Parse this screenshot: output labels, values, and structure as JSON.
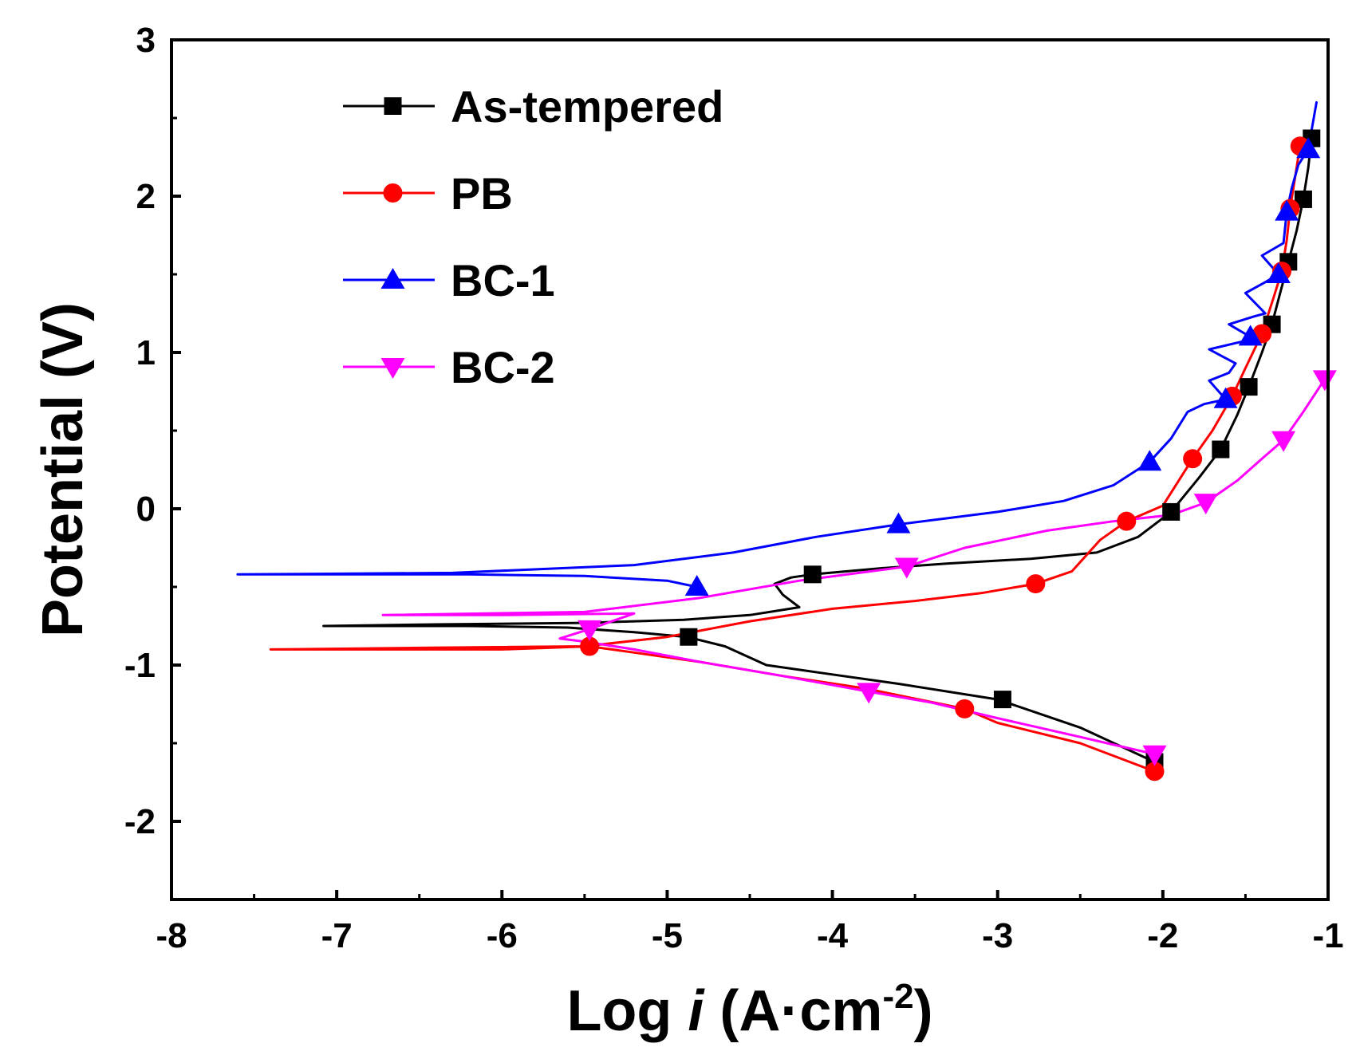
{
  "chart_data": {
    "type": "line",
    "title": "",
    "xlabel_prefix": "Log ",
    "xlabel_var": "i",
    "xlabel_unit": " (A·cm",
    "xlabel_exp": "-2",
    "xlabel_close": ")",
    "ylabel": "Potential (V)",
    "xlim": [
      -8,
      -1
    ],
    "ylim": [
      -2.5,
      3
    ],
    "xticks": [
      -8,
      -7,
      -6,
      -5,
      -4,
      -3,
      -2,
      -1
    ],
    "yticks": [
      -2,
      -1,
      0,
      1,
      2,
      3
    ],
    "xtick_labels": [
      "-8",
      "-7",
      "-6",
      "-5",
      "-4",
      "-3",
      "-2",
      "-1"
    ],
    "ytick_labels": [
      "-2",
      "-1",
      "0",
      "1",
      "2",
      "3"
    ],
    "legend_position": "top-left",
    "grid": false,
    "series": [
      {
        "name": "As-tempered",
        "color": "#000000",
        "marker": "square",
        "curve": [
          [
            -2.05,
            -1.62
          ],
          [
            -2.5,
            -1.4
          ],
          [
            -3.0,
            -1.22
          ],
          [
            -3.6,
            -1.12
          ],
          [
            -4.0,
            -1.06
          ],
          [
            -4.4,
            -1.0
          ],
          [
            -4.65,
            -0.88
          ],
          [
            -4.88,
            -0.82
          ],
          [
            -5.2,
            -0.79
          ],
          [
            -5.6,
            -0.76
          ],
          [
            -6.2,
            -0.75
          ],
          [
            -7.08,
            -0.75
          ],
          [
            -6.4,
            -0.74
          ],
          [
            -5.5,
            -0.73
          ],
          [
            -4.9,
            -0.71
          ],
          [
            -4.5,
            -0.68
          ],
          [
            -4.2,
            -0.63
          ],
          [
            -4.3,
            -0.55
          ],
          [
            -4.35,
            -0.48
          ],
          [
            -4.25,
            -0.44
          ],
          [
            -4.12,
            -0.42
          ],
          [
            -3.7,
            -0.38
          ],
          [
            -3.3,
            -0.35
          ],
          [
            -2.8,
            -0.32
          ],
          [
            -2.4,
            -0.28
          ],
          [
            -2.15,
            -0.18
          ],
          [
            -1.95,
            -0.02
          ],
          [
            -1.78,
            0.2
          ],
          [
            -1.65,
            0.38
          ],
          [
            -1.55,
            0.6
          ],
          [
            -1.48,
            0.78
          ],
          [
            -1.4,
            1.0
          ],
          [
            -1.34,
            1.18
          ],
          [
            -1.29,
            1.38
          ],
          [
            -1.24,
            1.58
          ],
          [
            -1.19,
            1.78
          ],
          [
            -1.15,
            1.98
          ],
          [
            -1.12,
            2.18
          ],
          [
            -1.1,
            2.37
          ]
        ],
        "points": [
          [
            -2.05,
            -1.62
          ],
          [
            -2.97,
            -1.22
          ],
          [
            -4.87,
            -0.82
          ],
          [
            -4.12,
            -0.42
          ],
          [
            -1.95,
            -0.02
          ],
          [
            -1.65,
            0.38
          ],
          [
            -1.48,
            0.78
          ],
          [
            -1.34,
            1.18
          ],
          [
            -1.24,
            1.58
          ],
          [
            -1.15,
            1.98
          ],
          [
            -1.1,
            2.37
          ]
        ]
      },
      {
        "name": "PB",
        "color": "#ff0000",
        "marker": "circle",
        "curve": [
          [
            -2.05,
            -1.68
          ],
          [
            -2.5,
            -1.5
          ],
          [
            -3.0,
            -1.37
          ],
          [
            -3.2,
            -1.28
          ],
          [
            -3.8,
            -1.15
          ],
          [
            -4.3,
            -1.07
          ],
          [
            -4.8,
            -0.98
          ],
          [
            -5.2,
            -0.92
          ],
          [
            -5.47,
            -0.88
          ],
          [
            -6.0,
            -0.9
          ],
          [
            -6.6,
            -0.9
          ],
          [
            -7.4,
            -0.9
          ],
          [
            -6.5,
            -0.89
          ],
          [
            -5.5,
            -0.88
          ],
          [
            -5.0,
            -0.82
          ],
          [
            -4.5,
            -0.72
          ],
          [
            -4.0,
            -0.64
          ],
          [
            -3.5,
            -0.59
          ],
          [
            -3.1,
            -0.54
          ],
          [
            -2.77,
            -0.48
          ],
          [
            -2.55,
            -0.4
          ],
          [
            -2.38,
            -0.2
          ],
          [
            -2.22,
            -0.08
          ],
          [
            -2.0,
            0.02
          ],
          [
            -1.82,
            0.32
          ],
          [
            -1.7,
            0.5
          ],
          [
            -1.58,
            0.72
          ],
          [
            -1.5,
            0.9
          ],
          [
            -1.4,
            1.12
          ],
          [
            -1.33,
            1.35
          ],
          [
            -1.28,
            1.52
          ],
          [
            -1.25,
            1.72
          ],
          [
            -1.23,
            1.92
          ],
          [
            -1.2,
            2.12
          ],
          [
            -1.17,
            2.32
          ]
        ],
        "points": [
          [
            -2.05,
            -1.68
          ],
          [
            -3.2,
            -1.28
          ],
          [
            -5.47,
            -0.88
          ],
          [
            -2.77,
            -0.48
          ],
          [
            -2.22,
            -0.08
          ],
          [
            -1.82,
            0.32
          ],
          [
            -1.58,
            0.72
          ],
          [
            -1.4,
            1.12
          ],
          [
            -1.28,
            1.52
          ],
          [
            -1.23,
            1.92
          ],
          [
            -1.17,
            2.32
          ]
        ]
      },
      {
        "name": "BC-1",
        "color": "#0000ff",
        "marker": "triangle-up",
        "curve": [
          [
            -4.82,
            -0.5
          ],
          [
            -5.0,
            -0.46
          ],
          [
            -5.5,
            -0.43
          ],
          [
            -6.2,
            -0.42
          ],
          [
            -7.6,
            -0.42
          ],
          [
            -6.3,
            -0.41
          ],
          [
            -5.2,
            -0.36
          ],
          [
            -4.6,
            -0.28
          ],
          [
            -4.1,
            -0.18
          ],
          [
            -3.6,
            -0.1
          ],
          [
            -3.0,
            -0.02
          ],
          [
            -2.6,
            0.05
          ],
          [
            -2.3,
            0.15
          ],
          [
            -2.08,
            0.3
          ],
          [
            -1.95,
            0.45
          ],
          [
            -1.85,
            0.62
          ],
          [
            -1.75,
            0.67
          ],
          [
            -1.62,
            0.7
          ],
          [
            -1.72,
            0.82
          ],
          [
            -1.6,
            0.87
          ],
          [
            -1.56,
            0.93
          ],
          [
            -1.72,
            1.02
          ],
          [
            -1.52,
            1.07
          ],
          [
            -1.47,
            1.1
          ],
          [
            -1.6,
            1.18
          ],
          [
            -1.45,
            1.23
          ],
          [
            -1.38,
            1.25
          ],
          [
            -1.5,
            1.38
          ],
          [
            -1.38,
            1.45
          ],
          [
            -1.3,
            1.5
          ],
          [
            -1.4,
            1.62
          ],
          [
            -1.27,
            1.7
          ],
          [
            -1.25,
            1.9
          ],
          [
            -1.22,
            2.05
          ],
          [
            -1.18,
            2.2
          ],
          [
            -1.12,
            2.3
          ],
          [
            -1.07,
            2.6
          ]
        ],
        "points": [
          [
            -4.82,
            -0.5
          ],
          [
            -3.6,
            -0.1
          ],
          [
            -2.08,
            0.3
          ],
          [
            -1.62,
            0.7
          ],
          [
            -1.47,
            1.1
          ],
          [
            -1.3,
            1.5
          ],
          [
            -1.25,
            1.9
          ],
          [
            -1.12,
            2.3
          ]
        ]
      },
      {
        "name": "BC-2",
        "color": "#ff00ff",
        "marker": "triangle-down",
        "curve": [
          [
            -2.05,
            -1.57
          ],
          [
            -2.5,
            -1.46
          ],
          [
            -3.0,
            -1.34
          ],
          [
            -3.4,
            -1.24
          ],
          [
            -3.78,
            -1.17
          ],
          [
            -4.3,
            -1.07
          ],
          [
            -4.8,
            -0.98
          ],
          [
            -5.2,
            -0.9
          ],
          [
            -5.5,
            -0.85
          ],
          [
            -5.65,
            -0.83
          ],
          [
            -5.47,
            -0.77
          ],
          [
            -5.2,
            -0.67
          ],
          [
            -6.0,
            -0.68
          ],
          [
            -6.72,
            -0.68
          ],
          [
            -5.5,
            -0.66
          ],
          [
            -4.8,
            -0.57
          ],
          [
            -4.2,
            -0.46
          ],
          [
            -3.55,
            -0.37
          ],
          [
            -3.2,
            -0.25
          ],
          [
            -2.7,
            -0.14
          ],
          [
            -2.3,
            -0.08
          ],
          [
            -1.95,
            -0.04
          ],
          [
            -1.74,
            0.04
          ],
          [
            -1.55,
            0.18
          ],
          [
            -1.4,
            0.32
          ],
          [
            -1.27,
            0.44
          ],
          [
            -1.15,
            0.62
          ],
          [
            -1.02,
            0.83
          ]
        ],
        "points": [
          [
            -2.05,
            -1.57
          ],
          [
            -3.78,
            -1.17
          ],
          [
            -5.47,
            -0.77
          ],
          [
            -3.55,
            -0.37
          ],
          [
            -1.74,
            0.04
          ],
          [
            -1.27,
            0.44
          ],
          [
            -1.02,
            0.83
          ]
        ]
      }
    ]
  }
}
